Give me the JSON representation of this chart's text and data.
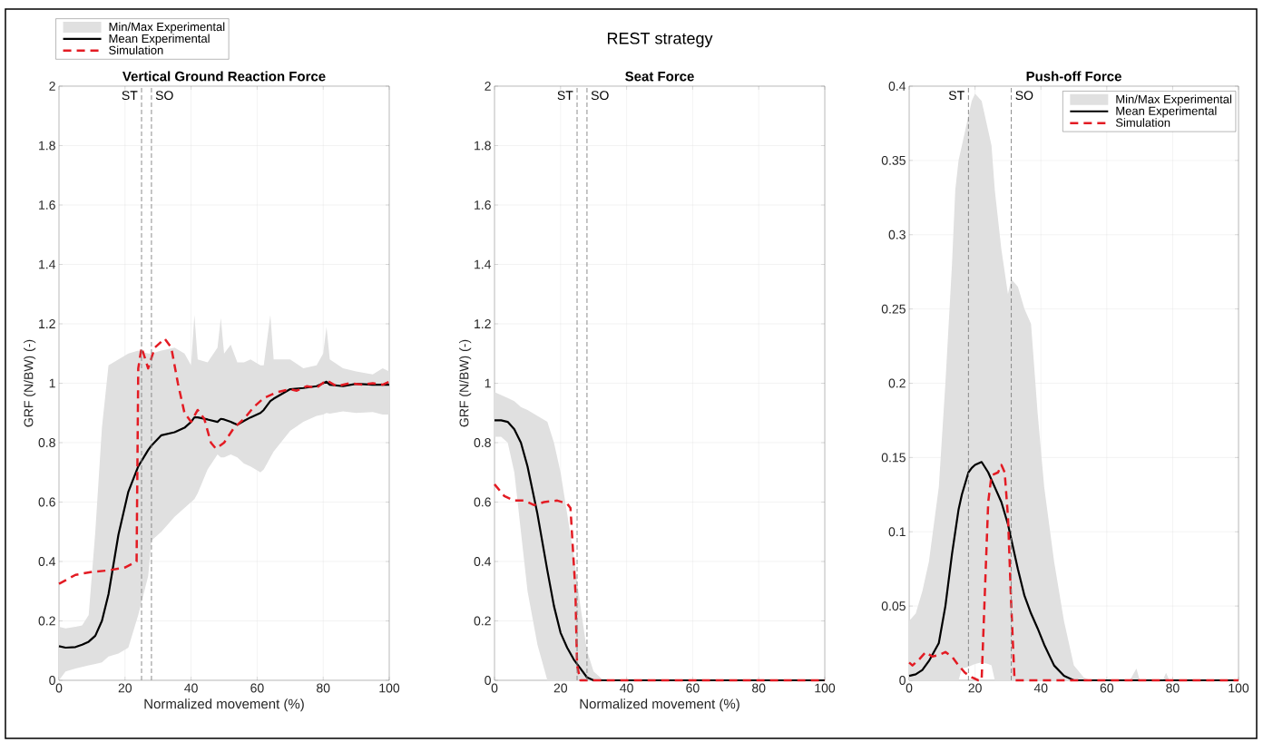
{
  "chart_data": [
    {
      "type": "line",
      "title": "Vertical Ground Reaction Force",
      "xlabel": "Normalized movement (%)",
      "ylabel": "GRF (N/BW) (-)",
      "annotations": [
        "Min/Max Experimental"
      ],
      "xlim": [
        0,
        100
      ],
      "ylim": [
        0,
        2
      ],
      "xticks": [
        0,
        20,
        40,
        60,
        80,
        100
      ],
      "yticks": [
        0,
        0.2,
        0.4,
        0.6,
        0.8,
        1,
        1.2,
        1.4,
        1.6,
        1.8,
        2
      ],
      "grid": true,
      "legend": "top left",
      "marker": "none",
      "ref_lines": [
        {
          "axis": "x",
          "value": 25,
          "label": "ST",
          "color": "#808080",
          "line_style": "dashed"
        },
        {
          "axis": "x",
          "value": 28,
          "label": "SO",
          "color": "#808080",
          "line_style": "dashed"
        }
      ],
      "series": [
        {
          "name": "Mean Experimental",
          "color": "#000000",
          "line_style": "solid",
          "x": [
            0,
            2,
            5,
            7,
            9,
            11,
            13,
            15,
            18,
            21,
            24,
            27,
            28,
            31,
            35,
            38,
            40,
            41,
            42,
            45,
            48,
            49,
            50,
            52,
            54,
            56,
            58,
            61,
            62,
            64,
            65,
            70,
            74,
            78,
            80,
            81,
            82,
            86,
            90,
            95,
            98,
            100
          ],
          "values": [
            0.115,
            0.11,
            0.112,
            0.12,
            0.13,
            0.15,
            0.2,
            0.29,
            0.49,
            0.635,
            0.72,
            0.775,
            0.79,
            0.825,
            0.835,
            0.85,
            0.87,
            0.885,
            0.885,
            0.878,
            0.87,
            0.88,
            0.878,
            0.87,
            0.86,
            0.873,
            0.885,
            0.9,
            0.91,
            0.94,
            0.948,
            0.98,
            0.984,
            0.99,
            1.0,
            1.005,
            0.995,
            0.99,
            0.998,
            0.995,
            0.995,
            0.995
          ],
          "upper": [
            0.18,
            0.175,
            0.18,
            0.185,
            0.22,
            0.5,
            0.85,
            1.06,
            1.08,
            1.1,
            1.11,
            1.1,
            1.1,
            1.11,
            1.12,
            1.1,
            1.06,
            1.23,
            1.08,
            1.07,
            1.12,
            1.22,
            1.1,
            1.13,
            1.07,
            1.07,
            1.08,
            1.06,
            1.06,
            1.23,
            1.08,
            1.08,
            1.05,
            1.06,
            1.1,
            1.19,
            1.08,
            1.05,
            1.04,
            1.03,
            1.05,
            1.04
          ],
          "lower": [
            0,
            0.03,
            0.04,
            0.045,
            0.05,
            0.055,
            0.06,
            0.08,
            0.09,
            0.11,
            0.22,
            0.35,
            0.47,
            0.5,
            0.55,
            0.58,
            0.6,
            0.61,
            0.63,
            0.71,
            0.76,
            0.75,
            0.75,
            0.76,
            0.75,
            0.73,
            0.72,
            0.7,
            0.71,
            0.75,
            0.77,
            0.84,
            0.87,
            0.89,
            0.895,
            0.9,
            0.898,
            0.905,
            0.9,
            0.903,
            0.895,
            0.895
          ]
        },
        {
          "name": "Simulation",
          "color": "#e31b23",
          "line_style": "dashed",
          "x": [
            0,
            5,
            10,
            15,
            20,
            23.5,
            24,
            25,
            27,
            29,
            32,
            34,
            36,
            38,
            40,
            42,
            44,
            46,
            47.5,
            50,
            53,
            56,
            59,
            62,
            66,
            70,
            72,
            75,
            78,
            81,
            84,
            88,
            92,
            95,
            98,
            100
          ],
          "values": [
            0.325,
            0.355,
            0.365,
            0.37,
            0.38,
            0.4,
            1.05,
            1.12,
            1.05,
            1.12,
            1.15,
            1.12,
            1.0,
            0.9,
            0.87,
            0.91,
            0.88,
            0.8,
            0.78,
            0.8,
            0.85,
            0.88,
            0.92,
            0.95,
            0.97,
            0.98,
            0.975,
            0.99,
            0.985,
            1.01,
            0.99,
            1.0,
            0.995,
            1.0,
            0.995,
            1.005
          ]
        }
      ]
    },
    {
      "type": "line",
      "title": "Seat Force",
      "xlabel": "Normalized movement (%)",
      "ylabel": "GRF (N/BW) (-)",
      "annotations": [
        "REST strategy"
      ],
      "xlim": [
        0,
        100
      ],
      "ylim": [
        0,
        2
      ],
      "xticks": [
        0,
        20,
        40,
        60,
        80,
        100
      ],
      "yticks": [
        0,
        0.2,
        0.4,
        0.6,
        0.8,
        1,
        1.2,
        1.4,
        1.6,
        1.8,
        2
      ],
      "grid": true,
      "marker": "none",
      "ref_lines": [
        {
          "axis": "x",
          "value": 25,
          "label": "ST",
          "color": "#808080",
          "line_style": "dashed"
        },
        {
          "axis": "x",
          "value": 28,
          "label": "SO",
          "color": "#808080",
          "line_style": "dashed"
        }
      ],
      "series": [
        {
          "color": "#000000",
          "line_style": "solid",
          "x": [
            0,
            2,
            4,
            6,
            8,
            10,
            13,
            16,
            18,
            20,
            22,
            24,
            26,
            28,
            30,
            33,
            100
          ],
          "values": [
            0.875,
            0.875,
            0.87,
            0.845,
            0.8,
            0.72,
            0.56,
            0.37,
            0.25,
            0.16,
            0.11,
            0.07,
            0.04,
            0.01,
            0,
            0,
            0
          ],
          "upper": [
            0.97,
            0.96,
            0.95,
            0.94,
            0.92,
            0.91,
            0.89,
            0.87,
            0.8,
            0.7,
            0.56,
            0.42,
            0.25,
            0.1,
            0.03,
            0,
            0
          ],
          "lower": [
            0.82,
            0.82,
            0.8,
            0.7,
            0.5,
            0.3,
            0.12,
            0,
            0,
            0,
            0,
            0,
            0,
            0,
            0,
            0,
            0
          ]
        },
        {
          "color": "#e31b23",
          "line_style": "dashed",
          "x": [
            0,
            3,
            6,
            9,
            12,
            15,
            19,
            22,
            23,
            24.5,
            25,
            26,
            100
          ],
          "values": [
            0.66,
            0.62,
            0.605,
            0.605,
            0.59,
            0.6,
            0.605,
            0.595,
            0.58,
            0.3,
            0.05,
            0,
            0
          ]
        }
      ]
    },
    {
      "type": "line",
      "title": "Push-off Force",
      "annotations": [
        "Min/Max Experimental"
      ],
      "xlim": [
        0,
        100
      ],
      "ylim": [
        0,
        0.4
      ],
      "xticks": [
        0,
        20,
        40,
        60,
        80,
        100
      ],
      "yticks": [
        0,
        0.05,
        0.1,
        0.15,
        0.2,
        0.25,
        0.3,
        0.35,
        0.4
      ],
      "grid": true,
      "legend": "top right",
      "marker": "none",
      "ref_lines": [
        {
          "axis": "x",
          "value": 18,
          "label": "ST",
          "color": "#808080",
          "line_style": "dashed"
        },
        {
          "axis": "x",
          "value": 31,
          "label": "SO",
          "color": "#808080",
          "line_style": "dashed"
        }
      ],
      "series": [
        {
          "name": "Mean Experimental",
          "color": "#000000",
          "line_style": "solid",
          "x": [
            0,
            2,
            4,
            6,
            9,
            11,
            13,
            14,
            15,
            16,
            18,
            19,
            20,
            22,
            24,
            25,
            26,
            28,
            30,
            31,
            33,
            35,
            37,
            39,
            41,
            44,
            47,
            50,
            53,
            55,
            67,
            69,
            70,
            77,
            78,
            79,
            100
          ],
          "values": [
            0.003,
            0.004,
            0.007,
            0.013,
            0.025,
            0.05,
            0.085,
            0.1,
            0.115,
            0.125,
            0.14,
            0.143,
            0.145,
            0.147,
            0.14,
            0.135,
            0.13,
            0.12,
            0.105,
            0.095,
            0.075,
            0.057,
            0.045,
            0.035,
            0.024,
            0.01,
            0.003,
            0,
            0,
            0,
            0,
            0,
            0,
            0,
            0,
            0,
            0
          ],
          "upper": [
            0.04,
            0.045,
            0.06,
            0.08,
            0.13,
            0.2,
            0.28,
            0.33,
            0.35,
            0.36,
            0.38,
            0.39,
            0.395,
            0.39,
            0.37,
            0.36,
            0.33,
            0.29,
            0.26,
            0.27,
            0.265,
            0.25,
            0.24,
            0.18,
            0.13,
            0.08,
            0.04,
            0.01,
            0.002,
            0,
            0,
            0.008,
            0,
            0,
            0.005,
            0,
            0
          ],
          "lower": [
            0,
            0,
            0,
            0,
            0,
            0,
            0,
            0,
            0,
            0.008,
            0.009,
            0.01,
            0.011,
            0.012,
            0.011,
            0.01,
            0,
            0,
            0,
            0,
            0,
            0,
            0,
            0,
            0,
            0,
            0,
            0,
            0,
            0,
            0,
            0,
            0,
            0,
            0,
            0,
            0
          ]
        },
        {
          "name": "Simulation",
          "color": "#e31b23",
          "line_style": "dashed",
          "x": [
            0,
            1,
            3,
            5,
            7,
            9,
            11,
            13,
            15,
            17,
            19,
            21,
            22,
            23,
            24,
            25,
            27,
            28,
            29,
            30,
            31,
            32,
            100
          ],
          "values": [
            0.012,
            0.01,
            0.014,
            0.019,
            0.016,
            0.017,
            0.019,
            0.016,
            0.01,
            0.005,
            0.002,
            0,
            0,
            0.06,
            0.12,
            0.138,
            0.14,
            0.145,
            0.14,
            0.11,
            0.05,
            0,
            0
          ]
        }
      ]
    }
  ]
}
